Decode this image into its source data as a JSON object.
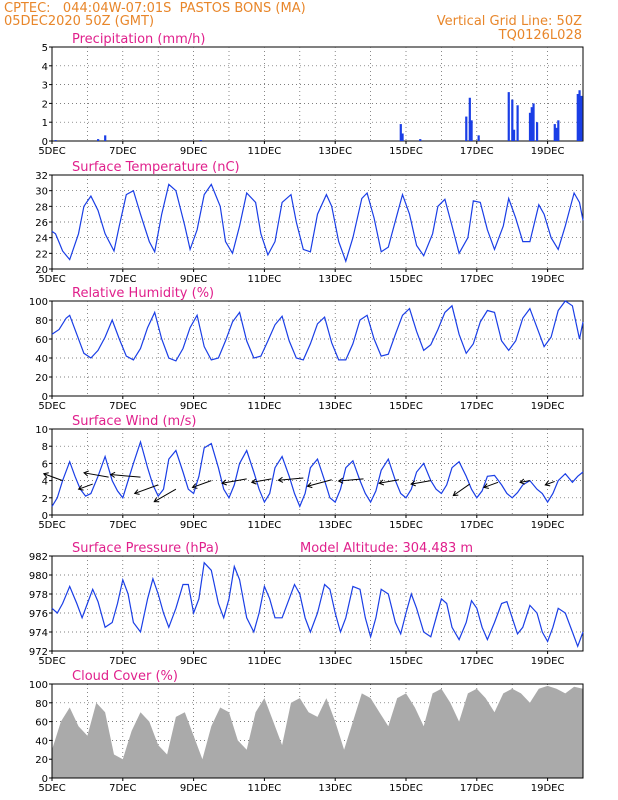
{
  "header": {
    "line1_left": "CPTEC:   044:04W-07:01S  PASTOS BONS (MA)",
    "line2_left": "05DEC2020 50Z (GMT)",
    "line2_right": "Vertical Grid Line: 50Z",
    "line3_right": "TQ0126L028"
  },
  "colors": {
    "header": "#e8862a",
    "title": "#e0208c",
    "series": "#1a3ee6",
    "cloud": "#aaaaaa",
    "grid": "#555555"
  },
  "chart_data": [
    {
      "type": "bar",
      "title": "Precipitation (mm/h)",
      "ylim": [
        0,
        5
      ],
      "yticks": [
        0,
        1,
        2,
        3,
        4,
        5
      ],
      "xlim": [
        5,
        20
      ],
      "xticks": [
        "5DEC",
        "7DEC",
        "9DEC",
        "11DEC",
        "13DEC",
        "15DEC",
        "17DEC",
        "19DEC"
      ],
      "x": [
        5.1,
        6.3,
        6.5,
        9.2,
        14.85,
        14.9,
        15.4,
        16.7,
        16.8,
        16.85,
        17.05,
        17.9,
        18.0,
        18.05,
        18.15,
        18.5,
        18.55,
        18.6,
        18.7,
        19.2,
        19.25,
        19.3,
        19.85,
        19.9,
        19.95
      ],
      "values": [
        0.05,
        0.1,
        0.3,
        0.05,
        0.9,
        0.4,
        0.1,
        1.3,
        2.3,
        1.1,
        0.3,
        2.6,
        2.2,
        0.6,
        1.9,
        1.5,
        1.8,
        2.0,
        1.0,
        0.9,
        0.7,
        1.1,
        2.5,
        2.7,
        2.4
      ]
    },
    {
      "type": "line",
      "title": "Surface Temperature (nC)",
      "ylim": [
        20,
        32
      ],
      "yticks": [
        20,
        22,
        24,
        26,
        28,
        30,
        32
      ],
      "xlim": [
        5,
        20
      ],
      "xticks": [
        "5DEC",
        "7DEC",
        "9DEC",
        "11DEC",
        "13DEC",
        "15DEC",
        "17DEC",
        "19DEC"
      ],
      "x": [
        5.0,
        5.1,
        5.2,
        5.3,
        5.5,
        5.75,
        5.9,
        6.1,
        6.3,
        6.5,
        6.75,
        6.9,
        7.1,
        7.3,
        7.5,
        7.75,
        7.9,
        8.1,
        8.3,
        8.5,
        8.75,
        8.9,
        9.1,
        9.3,
        9.5,
        9.75,
        9.9,
        10.1,
        10.3,
        10.5,
        10.75,
        10.9,
        11.1,
        11.3,
        11.5,
        11.75,
        11.9,
        12.1,
        12.3,
        12.5,
        12.75,
        12.9,
        13.1,
        13.3,
        13.5,
        13.75,
        13.9,
        14.1,
        14.3,
        14.5,
        14.75,
        14.9,
        15.1,
        15.3,
        15.5,
        15.75,
        15.9,
        16.1,
        16.3,
        16.5,
        16.75,
        16.9,
        17.1,
        17.3,
        17.5,
        17.75,
        17.9,
        18.1,
        18.3,
        18.5,
        18.75,
        18.9,
        19.1,
        19.3,
        19.5,
        19.75,
        19.9,
        20.0
      ],
      "values": [
        24.8,
        24.5,
        23.4,
        22.3,
        21.2,
        24.5,
        28.0,
        29.3,
        27.5,
        24.5,
        22.3,
        25.5,
        29.5,
        30.0,
        27.0,
        23.5,
        22.2,
        27.0,
        30.8,
        30.0,
        25.5,
        22.5,
        25.0,
        29.5,
        30.8,
        28.0,
        23.5,
        22.0,
        25.5,
        29.7,
        28.5,
        24.5,
        21.8,
        23.5,
        28.5,
        29.5,
        26.0,
        22.5,
        22.2,
        27.0,
        29.5,
        28.0,
        23.5,
        21.0,
        24.0,
        29.0,
        29.7,
        26.5,
        22.2,
        22.8,
        27.0,
        29.5,
        27.0,
        23.0,
        21.7,
        24.5,
        28.0,
        28.9,
        25.5,
        22.0,
        24.0,
        28.7,
        28.5,
        25.0,
        22.5,
        25.5,
        29.0,
        26.5,
        23.5,
        23.5,
        28.2,
        27.0,
        24.0,
        22.5,
        25.5,
        29.7,
        28.5,
        26.2
      ]
    },
    {
      "type": "line",
      "title": "Relative Humidity (%)",
      "ylim": [
        0,
        100
      ],
      "yticks": [
        0,
        20,
        40,
        60,
        80,
        100
      ],
      "xlim": [
        5,
        20
      ],
      "xticks": [
        "5DEC",
        "7DEC",
        "9DEC",
        "11DEC",
        "13DEC",
        "15DEC",
        "17DEC",
        "19DEC"
      ],
      "x": [
        5.0,
        5.2,
        5.4,
        5.5,
        5.7,
        5.9,
        6.1,
        6.3,
        6.5,
        6.7,
        6.9,
        7.1,
        7.3,
        7.5,
        7.7,
        7.9,
        8.1,
        8.3,
        8.5,
        8.7,
        8.9,
        9.1,
        9.3,
        9.5,
        9.7,
        9.9,
        10.1,
        10.3,
        10.5,
        10.7,
        10.9,
        11.1,
        11.3,
        11.5,
        11.7,
        11.9,
        12.1,
        12.3,
        12.5,
        12.7,
        12.9,
        13.1,
        13.3,
        13.5,
        13.7,
        13.9,
        14.1,
        14.3,
        14.5,
        14.7,
        14.9,
        15.1,
        15.3,
        15.5,
        15.7,
        15.9,
        16.1,
        16.3,
        16.5,
        16.7,
        16.9,
        17.1,
        17.3,
        17.5,
        17.7,
        17.9,
        18.1,
        18.3,
        18.5,
        18.7,
        18.9,
        19.1,
        19.3,
        19.5,
        19.7,
        19.9,
        20.0
      ],
      "values": [
        65,
        70,
        82,
        85,
        65,
        45,
        40,
        48,
        62,
        80,
        60,
        42,
        38,
        50,
        72,
        88,
        60,
        40,
        37,
        50,
        72,
        85,
        52,
        38,
        40,
        58,
        78,
        88,
        58,
        40,
        42,
        58,
        75,
        84,
        58,
        40,
        38,
        55,
        76,
        83,
        56,
        38,
        38,
        55,
        80,
        85,
        60,
        42,
        44,
        65,
        85,
        92,
        68,
        48,
        54,
        70,
        88,
        95,
        65,
        45,
        55,
        78,
        90,
        88,
        58,
        48,
        58,
        82,
        92,
        72,
        52,
        62,
        90,
        100,
        95,
        60,
        78
      ]
    },
    {
      "type": "line",
      "title": "Surface Wind (m/s)",
      "ylim": [
        0,
        10
      ],
      "yticks": [
        0,
        2,
        4,
        6,
        8,
        10
      ],
      "xlim": [
        5,
        20
      ],
      "xticks": [
        "5DEC",
        "7DEC",
        "9DEC",
        "11DEC",
        "13DEC",
        "15DEC",
        "17DEC",
        "19DEC"
      ],
      "x": [
        5.0,
        5.15,
        5.3,
        5.5,
        5.65,
        5.8,
        5.95,
        6.1,
        6.3,
        6.5,
        6.7,
        6.85,
        7.0,
        7.15,
        7.3,
        7.5,
        7.7,
        7.85,
        8.0,
        8.15,
        8.3,
        8.5,
        8.7,
        8.85,
        9.0,
        9.15,
        9.3,
        9.5,
        9.7,
        9.85,
        10.0,
        10.15,
        10.3,
        10.5,
        10.7,
        10.85,
        11.0,
        11.15,
        11.3,
        11.5,
        11.7,
        11.85,
        12.0,
        12.15,
        12.3,
        12.5,
        12.7,
        12.85,
        13.0,
        13.15,
        13.3,
        13.5,
        13.7,
        13.85,
        14.0,
        14.15,
        14.3,
        14.5,
        14.7,
        14.85,
        15.0,
        15.15,
        15.3,
        15.5,
        15.7,
        15.85,
        16.0,
        16.15,
        16.3,
        16.5,
        16.7,
        16.85,
        17.0,
        17.15,
        17.3,
        17.5,
        17.7,
        17.85,
        18.0,
        18.15,
        18.3,
        18.5,
        18.7,
        18.85,
        19.0,
        19.15,
        19.3,
        19.5,
        19.7,
        19.85,
        20.0
      ],
      "values": [
        1.0,
        2.0,
        4.0,
        6.2,
        4.5,
        3.0,
        2.2,
        2.5,
        4.5,
        6.8,
        4.0,
        2.8,
        2.0,
        4.0,
        6.0,
        8.5,
        5.5,
        3.5,
        2.2,
        3.0,
        6.5,
        7.5,
        5.0,
        3.0,
        2.5,
        4.5,
        7.8,
        8.3,
        5.5,
        3.0,
        2.0,
        3.5,
        6.0,
        7.5,
        5.0,
        3.0,
        1.5,
        2.5,
        5.5,
        6.8,
        4.5,
        2.5,
        1.0,
        2.5,
        5.5,
        6.5,
        4.0,
        2.0,
        1.5,
        3.0,
        5.5,
        6.3,
        4.0,
        2.5,
        1.5,
        2.8,
        5.2,
        6.5,
        4.0,
        2.5,
        2.0,
        3.0,
        5.0,
        6.0,
        4.0,
        3.0,
        2.5,
        3.5,
        5.5,
        6.2,
        4.5,
        3.0,
        2.0,
        2.8,
        4.5,
        4.6,
        3.5,
        2.5,
        2.0,
        2.6,
        3.5,
        4.0,
        3.0,
        2.5,
        1.5,
        2.5,
        4.0,
        4.8,
        3.8,
        4.5,
        5.0
      ],
      "arrows": [
        {
          "x": 5.3,
          "y": 4.0,
          "angle": 160,
          "len": 4
        },
        {
          "x": 6.15,
          "y": 3.6,
          "angle": 200,
          "len": 3
        },
        {
          "x": 6.6,
          "y": 4.4,
          "angle": 170,
          "len": 5
        },
        {
          "x": 7.5,
          "y": 4.4,
          "angle": 175,
          "len": 6
        },
        {
          "x": 8.0,
          "y": 3.5,
          "angle": 200,
          "len": 5
        },
        {
          "x": 8.5,
          "y": 3.0,
          "angle": 210,
          "len": 5
        },
        {
          "x": 9.5,
          "y": 4.0,
          "angle": 200,
          "len": 4
        },
        {
          "x": 10.5,
          "y": 4.2,
          "angle": 190,
          "len": 5
        },
        {
          "x": 11.2,
          "y": 4.2,
          "angle": 190,
          "len": 4
        },
        {
          "x": 12.1,
          "y": 4.3,
          "angle": 185,
          "len": 5
        },
        {
          "x": 12.9,
          "y": 4.1,
          "angle": 195,
          "len": 5
        },
        {
          "x": 13.8,
          "y": 4.2,
          "angle": 185,
          "len": 5
        },
        {
          "x": 14.8,
          "y": 4.1,
          "angle": 190,
          "len": 4
        },
        {
          "x": 15.7,
          "y": 4.0,
          "angle": 190,
          "len": 4
        },
        {
          "x": 16.8,
          "y": 3.6,
          "angle": 215,
          "len": 4
        },
        {
          "x": 17.6,
          "y": 3.8,
          "angle": 200,
          "len": 3
        },
        {
          "x": 18.5,
          "y": 4.0,
          "angle": 190,
          "len": 2
        },
        {
          "x": 19.2,
          "y": 3.9,
          "angle": 200,
          "len": 2
        }
      ]
    },
    {
      "type": "line",
      "title": "Surface Pressure (hPa)",
      "annotation": "Model Altitude: 304.483 m",
      "ylim": [
        972,
        982
      ],
      "yticks": [
        972,
        974,
        976,
        978,
        980,
        982
      ],
      "xlim": [
        5,
        20
      ],
      "xticks": [
        "5DEC",
        "7DEC",
        "9DEC",
        "11DEC",
        "13DEC",
        "15DEC",
        "17DEC",
        "19DEC"
      ],
      "x": [
        5.0,
        5.15,
        5.3,
        5.5,
        5.7,
        5.85,
        6.0,
        6.15,
        6.3,
        6.5,
        6.7,
        6.85,
        7.0,
        7.15,
        7.3,
        7.5,
        7.7,
        7.85,
        8.0,
        8.15,
        8.3,
        8.5,
        8.7,
        8.85,
        9.0,
        9.15,
        9.3,
        9.5,
        9.7,
        9.85,
        10.0,
        10.15,
        10.3,
        10.5,
        10.7,
        10.85,
        11.0,
        11.15,
        11.3,
        11.5,
        11.7,
        11.85,
        12.0,
        12.15,
        12.3,
        12.5,
        12.7,
        12.85,
        13.0,
        13.15,
        13.3,
        13.5,
        13.7,
        13.85,
        14.0,
        14.15,
        14.3,
        14.5,
        14.7,
        14.85,
        15.0,
        15.15,
        15.3,
        15.5,
        15.7,
        15.85,
        16.0,
        16.15,
        16.3,
        16.5,
        16.7,
        16.85,
        17.0,
        17.15,
        17.3,
        17.5,
        17.7,
        17.85,
        18.0,
        18.15,
        18.3,
        18.5,
        18.7,
        18.85,
        19.0,
        19.15,
        19.3,
        19.5,
        19.7,
        19.85,
        20.0
      ],
      "values": [
        976.5,
        976.0,
        977.0,
        978.8,
        977.0,
        975.5,
        977.0,
        978.5,
        977.2,
        974.5,
        975.0,
        977.0,
        979.5,
        978.0,
        975.0,
        974.0,
        977.5,
        979.6,
        978.0,
        976.0,
        974.5,
        976.5,
        979.0,
        979.0,
        976.0,
        977.5,
        981.3,
        980.5,
        977.0,
        975.5,
        977.5,
        980.9,
        979.5,
        975.5,
        974.0,
        976.0,
        978.8,
        977.5,
        975.5,
        975.5,
        977.5,
        979.0,
        978.0,
        975.5,
        974.0,
        976.0,
        979.0,
        978.5,
        976.0,
        974.0,
        975.5,
        978.8,
        978.5,
        975.5,
        973.5,
        975.5,
        978.5,
        978.0,
        975.0,
        973.8,
        976.0,
        978.0,
        976.5,
        974.0,
        973.5,
        975.5,
        977.5,
        977.0,
        974.5,
        973.2,
        975.0,
        977.3,
        976.5,
        974.5,
        973.2,
        975.0,
        977.0,
        977.2,
        975.5,
        973.8,
        974.5,
        976.8,
        976.0,
        974.0,
        973.0,
        974.5,
        976.5,
        976.0,
        974.0,
        972.5,
        974.0
      ]
    },
    {
      "type": "area",
      "title": "Cloud Cover (%)",
      "ylim": [
        0,
        100
      ],
      "yticks": [
        0,
        20,
        40,
        60,
        80,
        100
      ],
      "xlim": [
        5,
        20
      ],
      "xticks": [
        "5DEC",
        "7DEC",
        "9DEC",
        "11DEC",
        "13DEC",
        "15DEC",
        "17DEC",
        "19DEC"
      ],
      "x": [
        5.0,
        5.25,
        5.5,
        5.75,
        6.0,
        6.25,
        6.5,
        6.75,
        7.0,
        7.25,
        7.5,
        7.75,
        8.0,
        8.25,
        8.5,
        8.75,
        9.0,
        9.25,
        9.5,
        9.75,
        10.0,
        10.25,
        10.5,
        10.75,
        11.0,
        11.25,
        11.5,
        11.75,
        12.0,
        12.25,
        12.5,
        12.75,
        13.0,
        13.25,
        13.5,
        13.75,
        14.0,
        14.25,
        14.5,
        14.75,
        15.0,
        15.25,
        15.5,
        15.75,
        16.0,
        16.25,
        16.5,
        16.75,
        17.0,
        17.25,
        17.5,
        17.75,
        18.0,
        18.25,
        18.5,
        18.75,
        19.0,
        19.25,
        19.5,
        19.75,
        20.0
      ],
      "values": [
        30,
        60,
        75,
        55,
        45,
        80,
        70,
        25,
        20,
        50,
        70,
        60,
        35,
        25,
        65,
        70,
        45,
        20,
        55,
        75,
        70,
        40,
        30,
        70,
        85,
        60,
        35,
        80,
        85,
        70,
        65,
        85,
        60,
        30,
        60,
        90,
        85,
        70,
        55,
        85,
        90,
        75,
        55,
        90,
        95,
        80,
        60,
        90,
        95,
        85,
        70,
        90,
        95,
        90,
        80,
        95,
        98,
        95,
        90,
        97,
        95
      ]
    }
  ]
}
